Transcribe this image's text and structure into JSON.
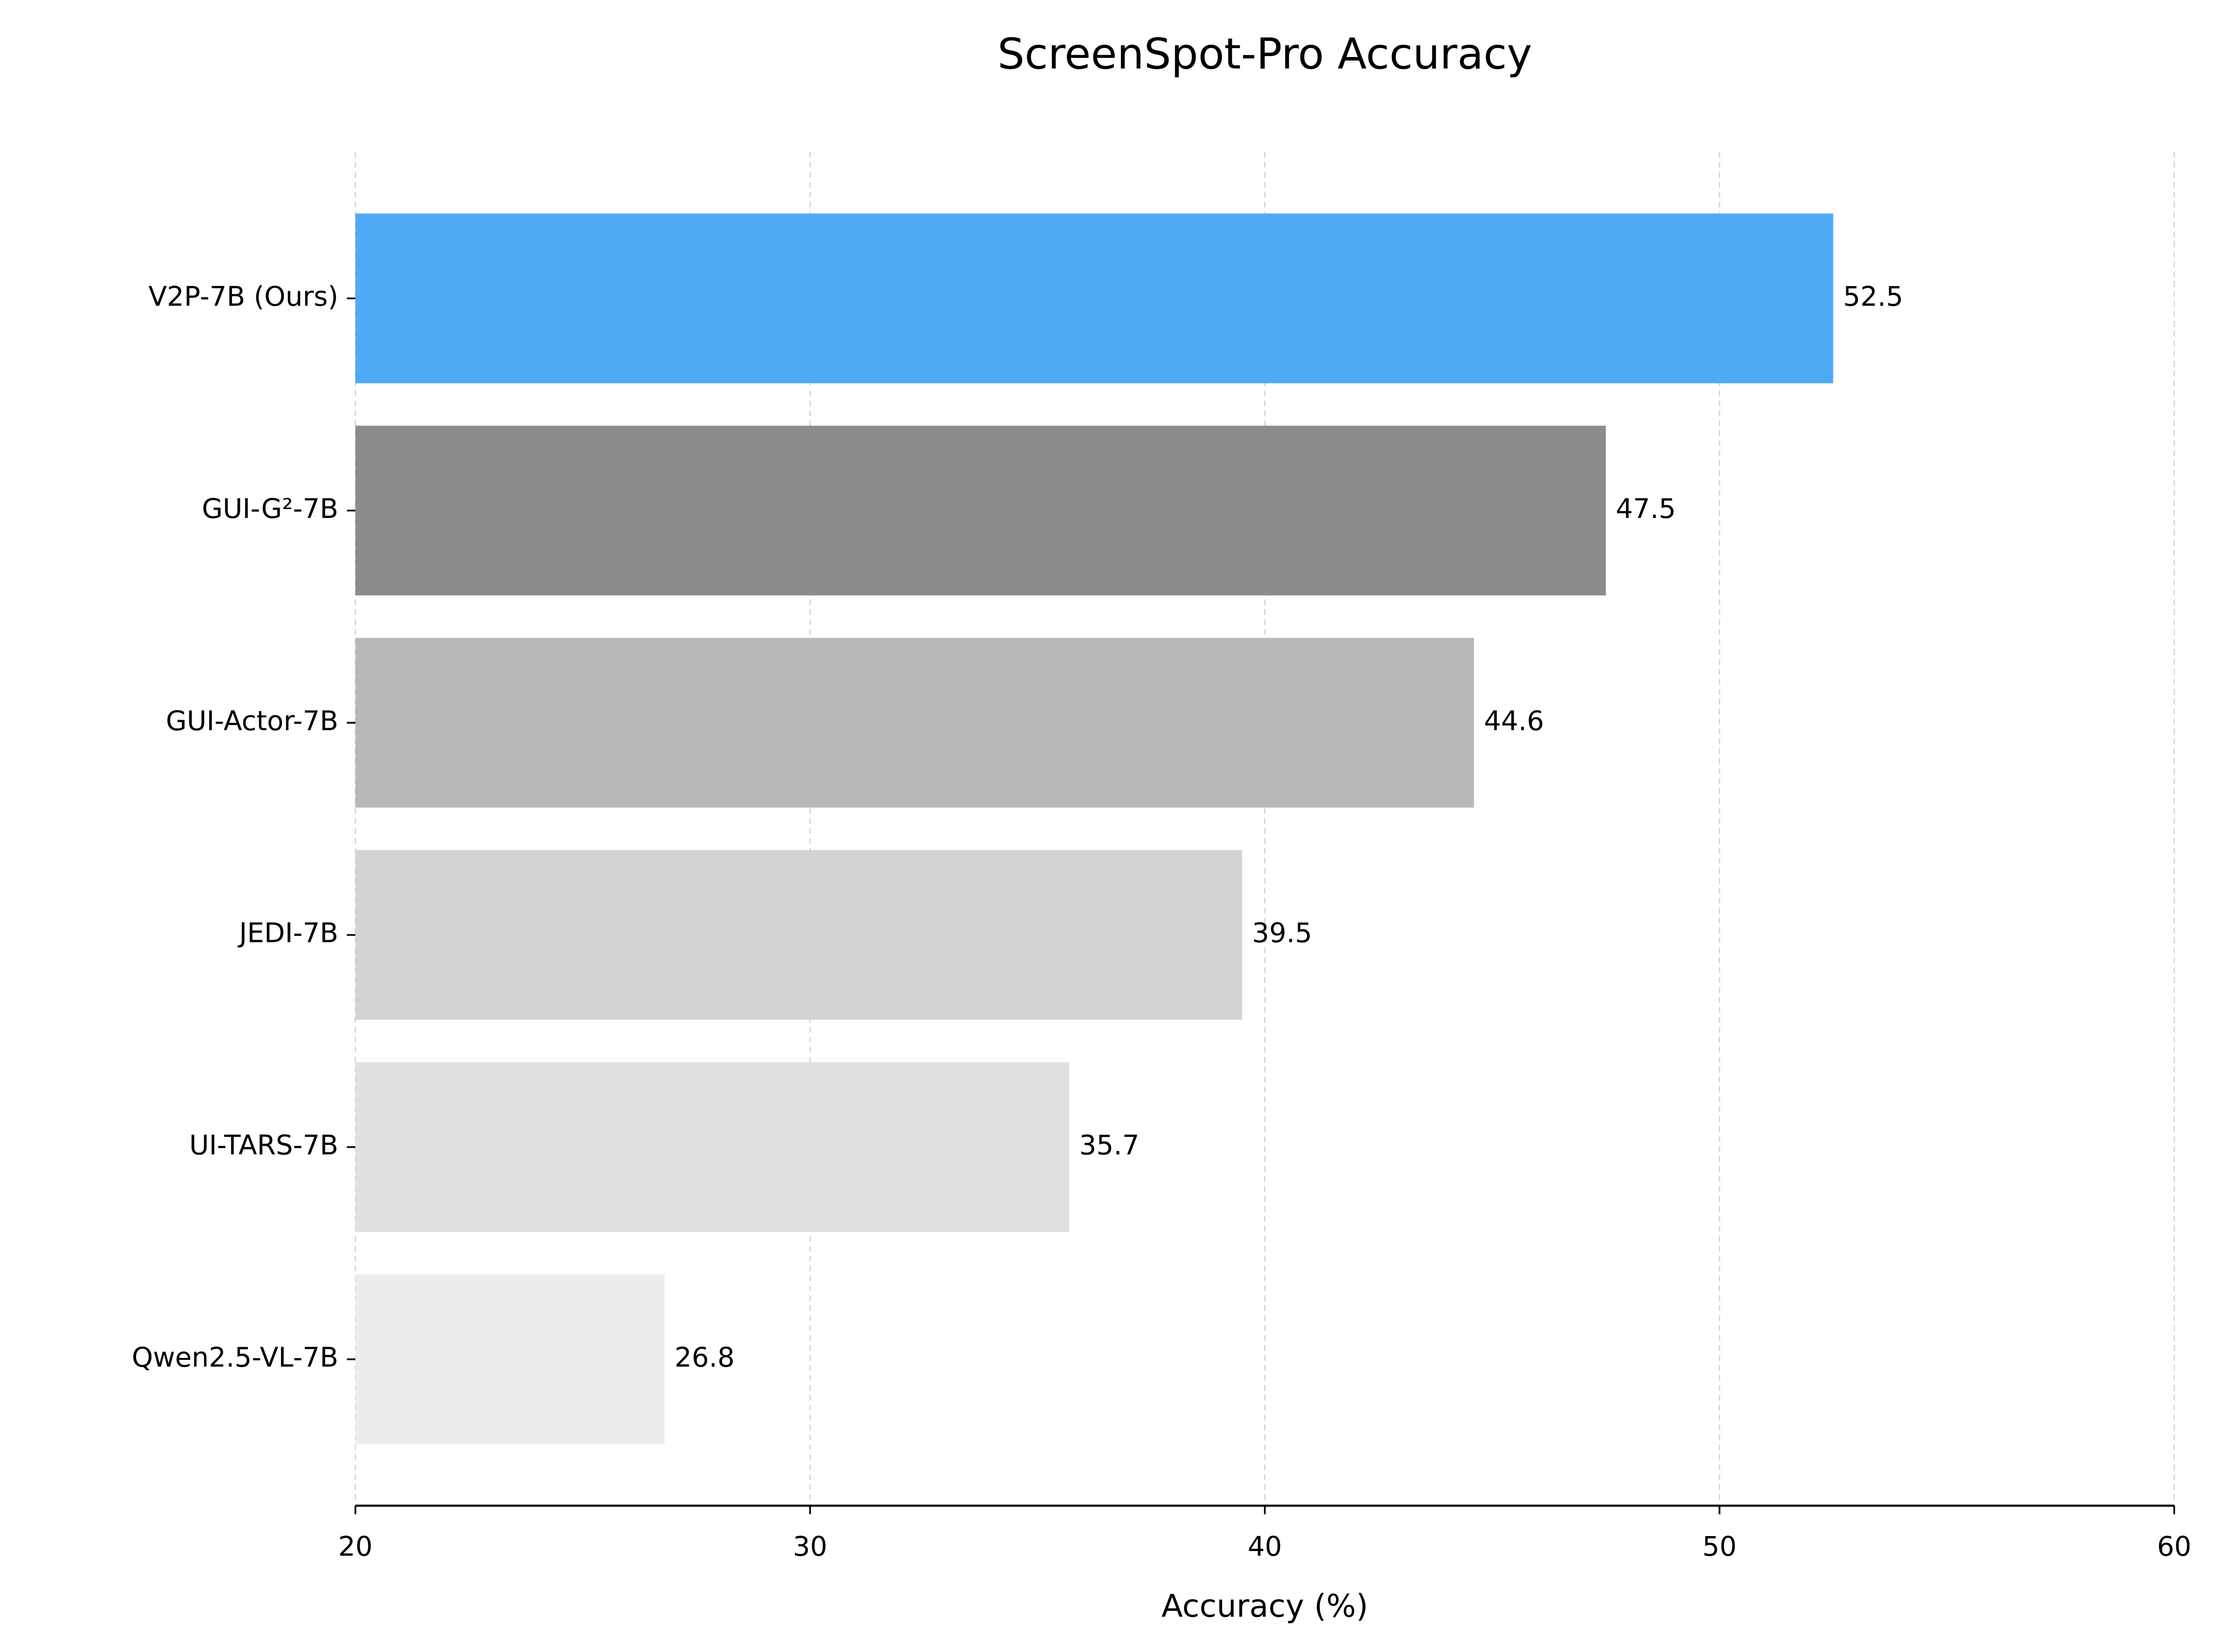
{
  "chart_data": {
    "type": "barh",
    "title": "ScreenSpot-Pro Accuracy",
    "x_label": "Accuracy (%)",
    "categories": [
      "V2P-7B (Ours)",
      "GUI-G²-7B",
      "GUI-Actor-7B",
      "JEDI-7B",
      "UI-TARS-7B",
      "Qwen2.5-VL-7B"
    ],
    "values": [
      52.5,
      47.5,
      44.6,
      39.5,
      35.7,
      26.8
    ],
    "colors": [
      "#4eaaf5",
      "#8c8c8c",
      "#b8b8b8",
      "#d3d3d3",
      "#e0e0e0",
      "#ececec"
    ],
    "xlim": [
      20,
      60
    ],
    "xticks": [
      20,
      30,
      40,
      50,
      60
    ],
    "grid": true
  }
}
